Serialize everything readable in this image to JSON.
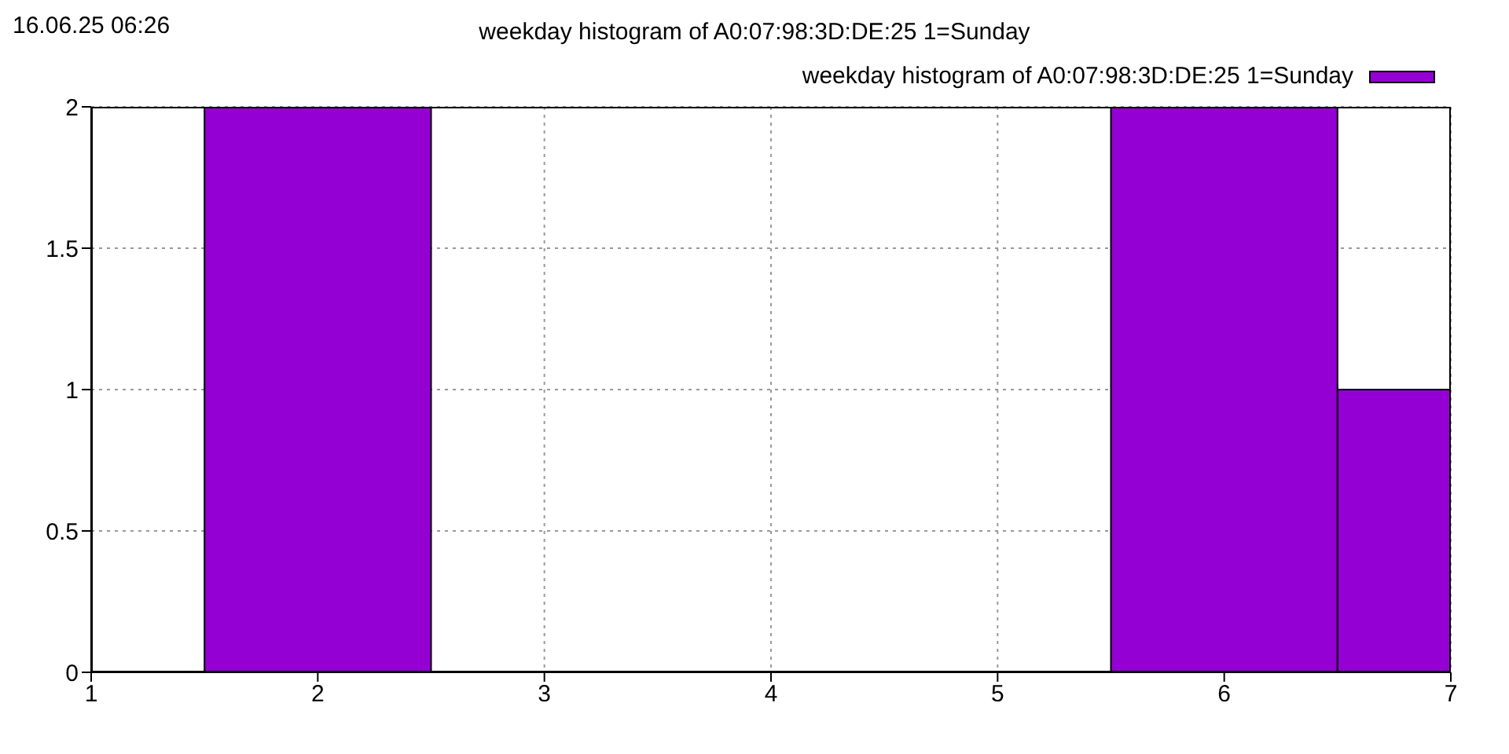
{
  "chart_data": {
    "type": "histogram",
    "title": "weekday histogram of A0:07:98:3D:DE:25 1=Sunday",
    "annotations": [
      "16.06.25 06:26"
    ],
    "bins": [
      1.5,
      2.5,
      5.5,
      6.5,
      7
    ],
    "series": [
      {
        "name": "weekday histogram of A0:07:98:3D:DE:25 1=Sunday",
        "color": "#9400d3",
        "values": [
          2,
          0,
          2,
          1
        ]
      }
    ],
    "xlim": [
      1,
      7
    ],
    "xticks": [
      1,
      2,
      3,
      4,
      5,
      6,
      7
    ],
    "ylim": [
      0,
      2
    ],
    "yticks": [
      0,
      0.5,
      1,
      1.5,
      2
    ],
    "grid": true,
    "legend": "top right"
  }
}
